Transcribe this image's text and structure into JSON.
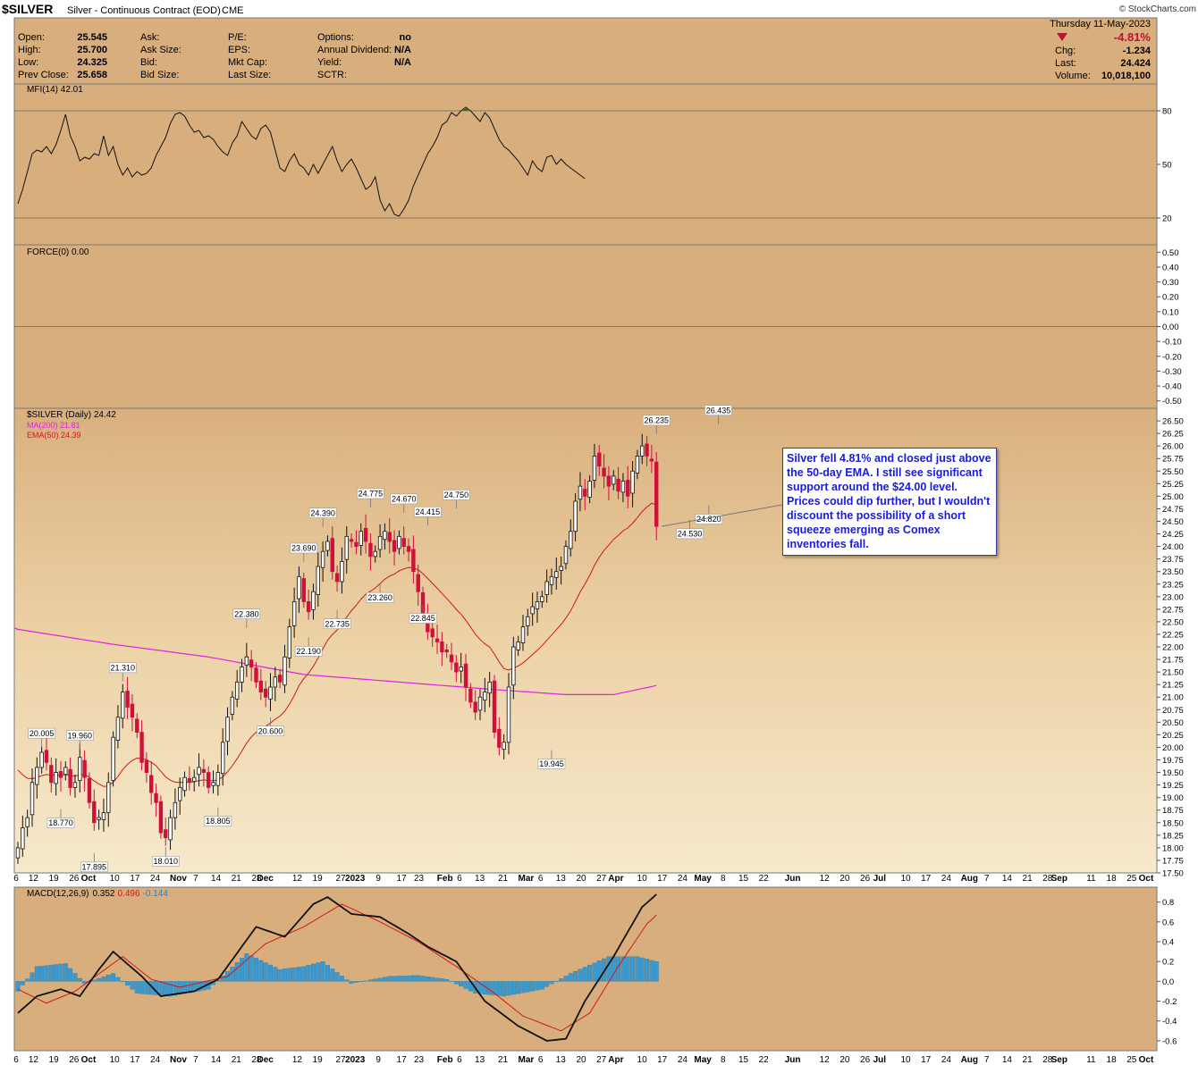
{
  "header": {
    "symbol": "$SILVER",
    "description": "Silver - Continuous Contract (EOD)",
    "exchange": "CME",
    "watermark": "© StockCharts.com",
    "date": "Thursday  11-May-2023",
    "quote": [
      {
        "label": "Open:",
        "value": "25.545"
      },
      {
        "label": "High:",
        "value": "25.700"
      },
      {
        "label": "Low:",
        "value": "24.325"
      },
      {
        "label": "Prev Close:",
        "value": "25.658"
      }
    ],
    "quote2": [
      "Ask:",
      "Ask Size:",
      "Bid:",
      "Bid Size:"
    ],
    "quote3": [
      "P/E:",
      "EPS:",
      "Mkt Cap:",
      "Last Size:"
    ],
    "quote4": [
      {
        "label": "Options:",
        "value": "no"
      },
      {
        "label": "Annual Dividend:",
        "value": "N/A"
      },
      {
        "label": "Yield:",
        "value": "N/A"
      },
      {
        "label": "SCTR:",
        "value": ""
      }
    ],
    "change_pct": "-4.81%",
    "stats": [
      {
        "label": "Chg:",
        "value": "-1.234"
      },
      {
        "label": "Last:",
        "value": "24.424"
      },
      {
        "label": "Volume:",
        "value": "10,018,100"
      }
    ]
  },
  "colors": {
    "panel_bg": "#d8ae7c",
    "up": "#000000",
    "down": "#d0103a",
    "ma200": "#e020e0",
    "ema50": "#d01818",
    "hist": "#3a9ad0",
    "annotation": "#1a1adc"
  },
  "annotation": "Silver fell 4.81% and closed just above the 50-day EMA. I still see significant support around the $24.00 level. Prices could dip further, but I wouldn't discount the possibility of a short squeeze emerging as Comex inventories fall.",
  "chart_data": [
    {
      "type": "line",
      "legend": "MFI(14) 42.01",
      "ylim": [
        5,
        95
      ],
      "ticks": [
        80,
        50,
        20
      ],
      "overbought": 80,
      "oversold": 20,
      "values": [
        28,
        36,
        46,
        56,
        58,
        57,
        60,
        56,
        61,
        69,
        78,
        66,
        60,
        52,
        54,
        53,
        56,
        55,
        66,
        55,
        60,
        50,
        44,
        48,
        43,
        46,
        44,
        45,
        48,
        55,
        60,
        65,
        73,
        78,
        79,
        77,
        72,
        68,
        69,
        65,
        66,
        64,
        60,
        57,
        55,
        62,
        66,
        74,
        70,
        66,
        64,
        70,
        72,
        68,
        58,
        48,
        46,
        52,
        56,
        50,
        48,
        44,
        50,
        45,
        50,
        55,
        60,
        52,
        46,
        50,
        53,
        48,
        42,
        36,
        38,
        43,
        30,
        24,
        28,
        22,
        21,
        25,
        30,
        38,
        44,
        50,
        56,
        60,
        65,
        72,
        74,
        79,
        77,
        80,
        82,
        80,
        77,
        74,
        79,
        76,
        70,
        64,
        60,
        58,
        55,
        52,
        48,
        44,
        52,
        48,
        46,
        54,
        55,
        50,
        53,
        50,
        48,
        46,
        44,
        42
      ]
    },
    {
      "type": "line",
      "legend": "FORCE(0) 0.00",
      "ylim": [
        -0.55,
        0.55
      ],
      "ticks": [
        0.5,
        0.4,
        0.3,
        0.2,
        0.1,
        0.0,
        -0.1,
        -0.2,
        -0.3,
        -0.4,
        -0.5
      ],
      "tick_labels": [
        "0.50",
        "0.40",
        "0.30",
        "0.20",
        "0.10",
        "0.00",
        "-0.10",
        "-0.20",
        "-0.30",
        "-0.40",
        "-0.50"
      ],
      "values": [
        0
      ]
    },
    {
      "type": "candlestick",
      "legend": "$SILVER (Daily) 24.42",
      "series": [
        {
          "name": "MA(200) 21.81"
        },
        {
          "name": "EMA(50) 24.39"
        }
      ],
      "ylim": [
        17.5,
        26.75
      ],
      "ticks": [
        26.5,
        26.25,
        26.0,
        25.75,
        25.5,
        25.25,
        25.0,
        24.75,
        24.5,
        24.25,
        24.0,
        23.75,
        23.5,
        23.25,
        23.0,
        22.75,
        22.5,
        22.25,
        22.0,
        21.75,
        21.5,
        21.25,
        21.0,
        20.75,
        20.5,
        20.25,
        20.0,
        19.75,
        19.5,
        19.25,
        19.0,
        18.75,
        18.5,
        18.25,
        18.0,
        17.75,
        17.5
      ],
      "tick_labels": [
        "26.50",
        "26.25",
        "26.00",
        "25.75",
        "25.50",
        "25.25",
        "25.00",
        "24.75",
        "24.50",
        "24.25",
        "24.00",
        "23.75",
        "23.50",
        "23.25",
        "23.00",
        "22.75",
        "22.50",
        "22.25",
        "22.00",
        "21.75",
        "21.50",
        "21.25",
        "21.00",
        "20.75",
        "20.50",
        "20.25",
        "20.00",
        "19.75",
        "19.50",
        "19.25",
        "19.00",
        "18.75",
        "18.50",
        "18.25",
        "18.00",
        "17.75",
        "17.50"
      ],
      "close": [
        18.0,
        18.4,
        18.6,
        19.3,
        19.6,
        19.9,
        19.7,
        19.3,
        19.5,
        19.4,
        19.6,
        19.2,
        19.3,
        19.8,
        19.4,
        18.9,
        18.5,
        18.6,
        18.7,
        19.3,
        20.2,
        20.6,
        21.1,
        20.8,
        20.6,
        20.3,
        19.7,
        19.5,
        19.1,
        18.9,
        18.3,
        18.2,
        18.6,
        18.9,
        19.2,
        19.4,
        19.3,
        19.4,
        19.6,
        19.5,
        19.2,
        19.3,
        19.5,
        20.1,
        20.6,
        21.0,
        21.3,
        21.6,
        21.8,
        21.6,
        21.3,
        21.1,
        21.0,
        21.2,
        21.4,
        21.3,
        21.8,
        22.4,
        22.9,
        23.4,
        22.9,
        22.7,
        23.1,
        23.6,
        23.9,
        24.1,
        23.5,
        23.3,
        23.7,
        24.2,
        24.1,
        24.0,
        24.3,
        24.1,
        23.8,
        23.9,
        24.2,
        24.3,
        24.1,
        23.9,
        24.2,
        24.0,
        23.9,
        23.5,
        23.1,
        22.6,
        22.3,
        22.2,
        22.1,
        21.9,
        21.9,
        21.7,
        21.5,
        21.6,
        21.2,
        20.9,
        20.7,
        21.0,
        21.1,
        21.3,
        20.3,
        20.0,
        20.1,
        21.2,
        22.0,
        22.1,
        22.4,
        22.6,
        22.8,
        22.9,
        23.0,
        23.3,
        23.4,
        23.5,
        23.6,
        24.0,
        24.3,
        24.9,
        25.2,
        25.0,
        25.3,
        25.8,
        25.6,
        25.4,
        25.2,
        25.4,
        25.1,
        25.3,
        25.0,
        25.5,
        25.8,
        26.0,
        25.8,
        25.7,
        24.4
      ],
      "marks": [
        {
          "label": "20.005",
          "index": 5,
          "value": 20.005,
          "side": "high"
        },
        {
          "label": "19.960",
          "index": 13,
          "value": 19.96,
          "side": "high"
        },
        {
          "label": "18.770",
          "index": 9,
          "value": 18.77,
          "side": "low"
        },
        {
          "label": "17.895",
          "index": 16,
          "value": 17.895,
          "side": "low"
        },
        {
          "label": "21.310",
          "index": 22,
          "value": 21.31,
          "side": "high"
        },
        {
          "label": "18.010",
          "index": 31,
          "value": 18.01,
          "side": "low"
        },
        {
          "label": "18.805",
          "index": 42,
          "value": 18.805,
          "side": "low"
        },
        {
          "label": "22.380",
          "index": 48,
          "value": 22.38,
          "side": "high"
        },
        {
          "label": "20.600",
          "index": 53,
          "value": 20.6,
          "side": "low"
        },
        {
          "label": "23.690",
          "index": 60,
          "value": 23.69,
          "side": "high"
        },
        {
          "label": "22.190",
          "index": 61,
          "value": 22.19,
          "side": "low"
        },
        {
          "label": "24.390",
          "index": 64,
          "value": 24.39,
          "side": "high"
        },
        {
          "label": "22.735",
          "index": 67,
          "value": 22.735,
          "side": "low"
        },
        {
          "label": "24.775",
          "index": 74,
          "value": 24.775,
          "side": "high"
        },
        {
          "label": "23.260",
          "index": 76,
          "value": 23.26,
          "side": "low"
        },
        {
          "label": "24.670",
          "index": 81,
          "value": 24.67,
          "side": "high"
        },
        {
          "label": "24.415",
          "index": 86,
          "value": 24.415,
          "side": "high"
        },
        {
          "label": "22.845",
          "index": 85,
          "value": 22.845,
          "side": "low"
        },
        {
          "label": "24.750",
          "index": 92,
          "value": 24.75,
          "side": "high"
        },
        {
          "label": "19.945",
          "index": 112,
          "value": 19.945,
          "side": "low"
        },
        {
          "label": "26.235",
          "index": 134,
          "value": 26.235,
          "side": "high"
        },
        {
          "label": "24.530",
          "index": 141,
          "value": 24.53,
          "side": "low"
        },
        {
          "label": "24.820",
          "index": 145,
          "value": 24.82,
          "side": "low"
        },
        {
          "label": "26.435",
          "index": 147,
          "value": 26.435,
          "side": "high"
        }
      ]
    },
    {
      "type": "line",
      "legend_name": "MACD(12,26,9)",
      "legend_values": [
        "0.352",
        "0.496",
        "-0.144"
      ],
      "ylim": [
        -0.7,
        0.95
      ],
      "ticks": [
        0.8,
        0.6,
        0.4,
        0.2,
        0.0,
        -0.2,
        -0.4,
        -0.6
      ],
      "tick_labels": [
        "0.8",
        "0.6",
        "0.4",
        "0.2",
        "0.0",
        "-0.2",
        "-0.4",
        "-0.6"
      ],
      "macd_keyframes": [
        [
          0,
          -0.32
        ],
        [
          4,
          -0.15
        ],
        [
          9,
          -0.08
        ],
        [
          13,
          -0.15
        ],
        [
          17,
          0.12
        ],
        [
          20,
          0.3
        ],
        [
          26,
          0.05
        ],
        [
          30,
          -0.15
        ],
        [
          37,
          -0.1
        ],
        [
          42,
          0.02
        ],
        [
          50,
          0.55
        ],
        [
          56,
          0.45
        ],
        [
          62,
          0.78
        ],
        [
          65,
          0.85
        ],
        [
          70,
          0.68
        ],
        [
          76,
          0.65
        ],
        [
          82,
          0.48
        ],
        [
          86,
          0.35
        ],
        [
          92,
          0.2
        ],
        [
          98,
          -0.2
        ],
        [
          105,
          -0.45
        ],
        [
          111,
          -0.6
        ],
        [
          115,
          -0.58
        ],
        [
          119,
          -0.2
        ],
        [
          125,
          0.25
        ],
        [
          131,
          0.75
        ],
        [
          135,
          0.92
        ],
        [
          140,
          0.72
        ],
        [
          143,
          0.55
        ],
        [
          148,
          0.52
        ],
        [
          150,
          0.35
        ]
      ],
      "signal_keyframes": [
        [
          0,
          -0.08
        ],
        [
          6,
          -0.22
        ],
        [
          12,
          -0.1
        ],
        [
          22,
          0.25
        ],
        [
          28,
          0.02
        ],
        [
          34,
          -0.06
        ],
        [
          44,
          0.05
        ],
        [
          52,
          0.38
        ],
        [
          60,
          0.55
        ],
        [
          68,
          0.78
        ],
        [
          76,
          0.6
        ],
        [
          84,
          0.4
        ],
        [
          92,
          0.15
        ],
        [
          100,
          -0.12
        ],
        [
          106,
          -0.35
        ],
        [
          114,
          -0.5
        ],
        [
          120,
          -0.32
        ],
        [
          126,
          0.15
        ],
        [
          132,
          0.58
        ],
        [
          137,
          0.8
        ],
        [
          144,
          0.6
        ],
        [
          148,
          0.52
        ],
        [
          150,
          0.5
        ]
      ],
      "histogram_keyframes": [
        [
          0,
          -0.1
        ],
        [
          4,
          0.15
        ],
        [
          10,
          0.18
        ],
        [
          14,
          -0.02
        ],
        [
          20,
          0.08
        ],
        [
          25,
          -0.12
        ],
        [
          32,
          -0.15
        ],
        [
          40,
          -0.08
        ],
        [
          48,
          0.28
        ],
        [
          55,
          0.12
        ],
        [
          60,
          0.15
        ],
        [
          64,
          0.2
        ],
        [
          70,
          -0.02
        ],
        [
          78,
          0.05
        ],
        [
          84,
          0.06
        ],
        [
          90,
          0.02
        ],
        [
          96,
          -0.12
        ],
        [
          102,
          -0.15
        ],
        [
          110,
          -0.08
        ],
        [
          116,
          0.08
        ],
        [
          124,
          0.25
        ],
        [
          130,
          0.25
        ],
        [
          134,
          0.2
        ],
        [
          140,
          0.0
        ],
        [
          144,
          -0.12
        ],
        [
          148,
          0.0
        ],
        [
          150,
          -0.14
        ]
      ]
    }
  ],
  "x_axis": {
    "labels": [
      {
        "day": 0,
        "label": "6"
      },
      {
        "day": 6,
        "label": "12"
      },
      {
        "day": 13,
        "label": "19"
      },
      {
        "day": 20,
        "label": "26"
      },
      {
        "day": 25,
        "label": "Oct"
      },
      {
        "day": 34,
        "label": "10"
      },
      {
        "day": 41,
        "label": "17"
      },
      {
        "day": 48,
        "label": "24"
      },
      {
        "day": 56,
        "label": "Nov"
      },
      {
        "day": 62,
        "label": "7"
      },
      {
        "day": 69,
        "label": "14"
      },
      {
        "day": 76,
        "label": "21"
      },
      {
        "day": 83,
        "label": "28"
      },
      {
        "day": 86,
        "label": "Dec"
      },
      {
        "day": 97,
        "label": "12"
      },
      {
        "day": 104,
        "label": "19"
      },
      {
        "day": 112,
        "label": "27"
      },
      {
        "day": 117,
        "label": "2023"
      },
      {
        "day": 125,
        "label": "9"
      },
      {
        "day": 133,
        "label": "17"
      },
      {
        "day": 139,
        "label": "23"
      },
      {
        "day": 148,
        "label": "Feb"
      },
      {
        "day": 153,
        "label": "6"
      },
      {
        "day": 160,
        "label": "13"
      },
      {
        "day": 168,
        "label": "21"
      },
      {
        "day": 176,
        "label": "Mar"
      },
      {
        "day": 181,
        "label": "6"
      },
      {
        "day": 188,
        "label": "13"
      },
      {
        "day": 195,
        "label": "20"
      },
      {
        "day": 202,
        "label": "27"
      },
      {
        "day": 207,
        "label": "Apr"
      },
      {
        "day": 216,
        "label": "10"
      },
      {
        "day": 223,
        "label": "17"
      },
      {
        "day": 230,
        "label": "24"
      },
      {
        "day": 237,
        "label": "May"
      },
      {
        "day": 244,
        "label": "8"
      },
      {
        "day": 251,
        "label": "15"
      },
      {
        "day": 258,
        "label": "22"
      },
      {
        "day": 268,
        "label": "Jun"
      },
      {
        "day": 279,
        "label": "12"
      },
      {
        "day": 286,
        "label": "20"
      },
      {
        "day": 293,
        "label": "26"
      },
      {
        "day": 298,
        "label": "Jul"
      },
      {
        "day": 307,
        "label": "10"
      },
      {
        "day": 314,
        "label": "17"
      },
      {
        "day": 321,
        "label": "24"
      },
      {
        "day": 329,
        "label": "Aug"
      },
      {
        "day": 335,
        "label": "7"
      },
      {
        "day": 342,
        "label": "14"
      },
      {
        "day": 349,
        "label": "21"
      },
      {
        "day": 356,
        "label": "28"
      },
      {
        "day": 360,
        "label": "Sep"
      },
      {
        "day": 371,
        "label": "11"
      },
      {
        "day": 378,
        "label": "18"
      },
      {
        "day": 385,
        "label": "25"
      },
      {
        "day": 390,
        "label": "Oct"
      }
    ]
  }
}
